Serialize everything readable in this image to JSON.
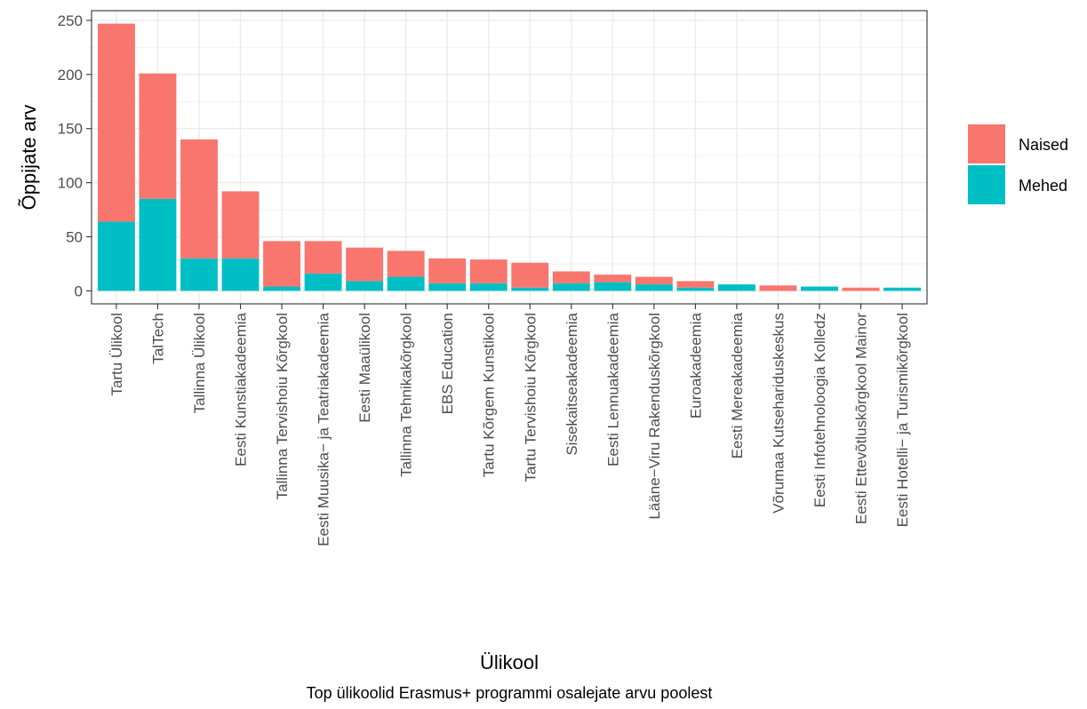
{
  "chart_data": {
    "type": "bar",
    "stacked": true,
    "xlabel": "Ülikool",
    "ylabel": "Õppijate arv",
    "caption": "Top ülikoolid Erasmus+ programmi osalejate arvu poolest",
    "ylim": [
      -12,
      259
    ],
    "yticks": [
      0,
      50,
      100,
      150,
      200,
      250
    ],
    "grid": true,
    "legend_position": "right",
    "categories": [
      "Tartu Ülikool",
      "TalTech",
      "Tallinna Ülikool",
      "Eesti Kunstiakadeemia",
      "Tallinna Tervishoiu Kõrgkool",
      "Eesti Muusika- ja Teatriakadeemia",
      "Eesti Maaülikool",
      "Tallinna Tehnikakõrgkool",
      "EBS Education",
      "Tartu Kõrgem Kunstikool",
      "Tartu Tervishoiu Kõrgkool",
      "Sisekaitseakadeemia",
      "Eesti Lennuakadeemia",
      "Lääne-Viru Rakenduskõrgkool",
      "Euroakadeemia",
      "Eesti Mereakadeemia",
      "Võrumaa Kutsehariduskeskus",
      "Eesti Infotehnoloogia Kolledz",
      "Eesti Ettevõtluskõrgkool Mainor",
      "Eesti Hotelli- ja Turismikõrgkool"
    ],
    "series": [
      {
        "name": "Naised",
        "color": "#F8766D",
        "values": [
          183,
          116,
          110,
          62,
          42,
          30,
          31,
          24,
          23,
          22,
          23,
          11,
          7,
          7,
          6,
          0,
          5,
          0,
          3,
          0
        ]
      },
      {
        "name": "Mehed",
        "color": "#00BFC4",
        "values": [
          64,
          85,
          30,
          30,
          4,
          16,
          9,
          13,
          7,
          7,
          3,
          7,
          8,
          6,
          3,
          6,
          0,
          4,
          0,
          3
        ]
      }
    ]
  }
}
